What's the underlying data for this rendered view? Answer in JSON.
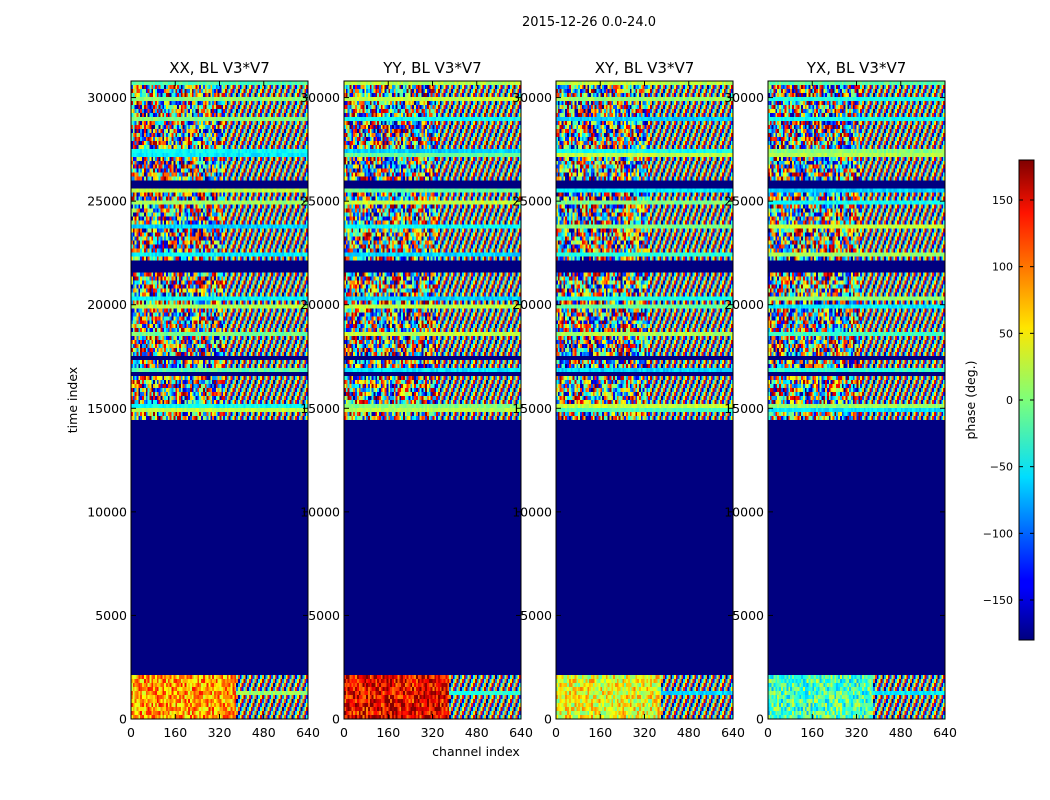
{
  "figure": {
    "suptitle": "2015-12-26 0.0-24.0"
  },
  "chart_data": {
    "type": "heatmap",
    "suptitle": "2015-12-26 0.0-24.0",
    "xlabel": "channel index",
    "ylabel": "time index",
    "xlim": [
      0,
      640
    ],
    "ylim": [
      0,
      30800
    ],
    "xticks": [
      "0",
      "160",
      "320",
      "480",
      "640"
    ],
    "yticks": [
      "0",
      "5000",
      "10000",
      "15000",
      "20000",
      "25000",
      "30000"
    ],
    "colormap": "jet",
    "colorbar": {
      "label": "phase (deg.)",
      "range": [
        -180,
        180
      ],
      "ticks": [
        "150",
        "100",
        "50",
        "0",
        "−50",
        "−100",
        "−150"
      ]
    },
    "flagged_time_ranges": [
      [
        2200,
        14400
      ],
      [
        15500,
        15600
      ],
      [
        16500,
        16700
      ],
      [
        17400,
        17600
      ],
      [
        21500,
        22100
      ],
      [
        25600,
        26000
      ]
    ],
    "panels": [
      {
        "title": "XX, BL V3*V7",
        "polarization": "XX",
        "baseline": "V3*V7",
        "low_channel_mean_phase_deg": 80
      },
      {
        "title": "YY, BL V3*V7",
        "polarization": "YY",
        "baseline": "V3*V7",
        "low_channel_mean_phase_deg": 140
      },
      {
        "title": "XY, BL V3*V7",
        "polarization": "XY",
        "baseline": "V3*V7",
        "low_channel_mean_phase_deg": 40
      },
      {
        "title": "YX, BL V3*V7",
        "polarization": "YX",
        "baseline": "V3*V7",
        "low_channel_mean_phase_deg": -20
      }
    ]
  }
}
